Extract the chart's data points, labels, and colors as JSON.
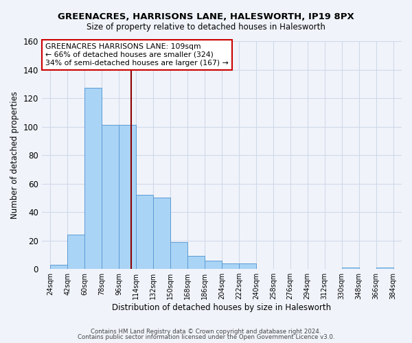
{
  "title": "GREENACRES, HARRISONS LANE, HALESWORTH, IP19 8PX",
  "subtitle": "Size of property relative to detached houses in Halesworth",
  "xlabel": "Distribution of detached houses by size in Halesworth",
  "ylabel": "Number of detached properties",
  "bin_edges": [
    24,
    42,
    60,
    78,
    96,
    114,
    132,
    150,
    168,
    186,
    204,
    222,
    240,
    258,
    276,
    294,
    312,
    330,
    348,
    366,
    384
  ],
  "bin_labels": [
    "24sqm",
    "42sqm",
    "60sqm",
    "78sqm",
    "96sqm",
    "114sqm",
    "132sqm",
    "150sqm",
    "168sqm",
    "186sqm",
    "204sqm",
    "222sqm",
    "240sqm",
    "258sqm",
    "276sqm",
    "294sqm",
    "312sqm",
    "330sqm",
    "348sqm",
    "366sqm",
    "384sqm"
  ],
  "bar_heights": [
    3,
    24,
    127,
    101,
    101,
    52,
    50,
    19,
    9,
    6,
    4,
    4,
    0,
    0,
    0,
    0,
    0,
    1,
    0,
    1
  ],
  "bar_color": "#aad4f5",
  "bar_edge_color": "#5b9bd5",
  "property_value": 109,
  "vline_color": "#8b0000",
  "ylim": [
    0,
    160
  ],
  "yticks": [
    0,
    20,
    40,
    60,
    80,
    100,
    120,
    140,
    160
  ],
  "annotation_title": "GREENACRES HARRISONS LANE: 109sqm",
  "annotation_line1": "← 66% of detached houses are smaller (324)",
  "annotation_line2": "34% of semi-detached houses are larger (167) →",
  "annotation_box_color": "#ffffff",
  "annotation_box_edge": "#cc0000",
  "grid_color": "#d0d8e8",
  "background_color": "#f0f4fa",
  "footer1": "Contains HM Land Registry data © Crown copyright and database right 2024.",
  "footer2": "Contains public sector information licensed under the Open Government Licence v3.0."
}
